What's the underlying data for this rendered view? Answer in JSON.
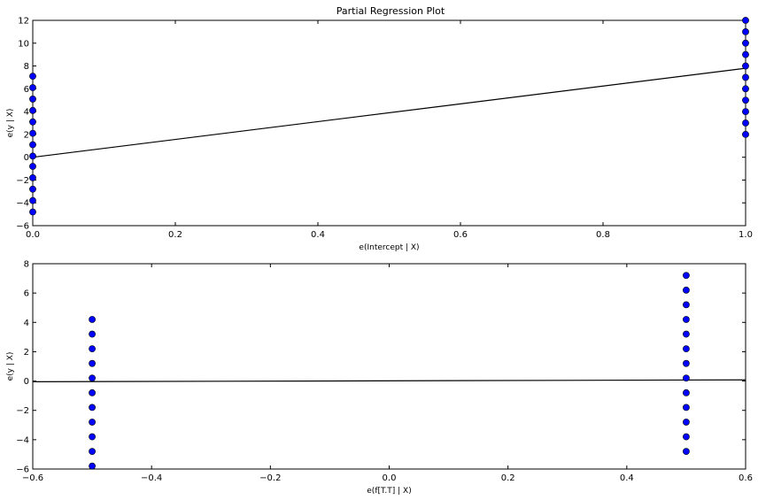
{
  "chart_data": [
    {
      "type": "scatter",
      "title": "Partial Regression Plot",
      "xlabel": "e(Intercept | X)",
      "ylabel": "e(y | X)",
      "xlim": [
        0.0,
        1.0
      ],
      "ylim": [
        -6,
        12
      ],
      "xticks": [
        "0.0",
        "0.2",
        "0.4",
        "0.6",
        "0.8",
        "1.0"
      ],
      "xtick_values": [
        0.0,
        0.2,
        0.4,
        0.6,
        0.8,
        1.0
      ],
      "yticks": [
        "−6",
        "−4",
        "−2",
        "0",
        "2",
        "4",
        "6",
        "8",
        "10",
        "12"
      ],
      "ytick_values": [
        -6,
        -4,
        -2,
        0,
        2,
        4,
        6,
        8,
        10,
        12
      ],
      "grid": false,
      "points": [
        {
          "x": 0.0,
          "y": -4.8
        },
        {
          "x": 0.0,
          "y": -3.8
        },
        {
          "x": 0.0,
          "y": -2.8
        },
        {
          "x": 0.0,
          "y": -1.8
        },
        {
          "x": 0.0,
          "y": -0.8
        },
        {
          "x": 0.0,
          "y": 0.1
        },
        {
          "x": 0.0,
          "y": 1.1
        },
        {
          "x": 0.0,
          "y": 2.1
        },
        {
          "x": 0.0,
          "y": 3.1
        },
        {
          "x": 0.0,
          "y": 4.1
        },
        {
          "x": 0.0,
          "y": 5.1
        },
        {
          "x": 0.0,
          "y": 6.1
        },
        {
          "x": 0.0,
          "y": 7.1
        },
        {
          "x": 1.0,
          "y": 2.0
        },
        {
          "x": 1.0,
          "y": 3.0
        },
        {
          "x": 1.0,
          "y": 4.0
        },
        {
          "x": 1.0,
          "y": 5.0
        },
        {
          "x": 1.0,
          "y": 6.0
        },
        {
          "x": 1.0,
          "y": 7.0
        },
        {
          "x": 1.0,
          "y": 8.0
        },
        {
          "x": 1.0,
          "y": 9.0
        },
        {
          "x": 1.0,
          "y": 10.0
        },
        {
          "x": 1.0,
          "y": 11.0
        },
        {
          "x": 1.0,
          "y": 12.0
        }
      ],
      "fit_line": {
        "x": [
          0.0,
          1.0
        ],
        "y": [
          0.0,
          7.8
        ]
      },
      "marker_color": "#0000ff",
      "line_color": "#000000"
    },
    {
      "type": "scatter",
      "title": "",
      "xlabel": "e(f[T.T] | X)",
      "ylabel": "e(y | X)",
      "xlim": [
        -0.6,
        0.6
      ],
      "ylim": [
        -6,
        8
      ],
      "xticks": [
        "−0.6",
        "−0.4",
        "−0.2",
        "0.0",
        "0.2",
        "0.4",
        "0.6"
      ],
      "xtick_values": [
        -0.6,
        -0.4,
        -0.2,
        0.0,
        0.2,
        0.4,
        0.6
      ],
      "yticks": [
        "−6",
        "−4",
        "−2",
        "0",
        "2",
        "4",
        "6",
        "8"
      ],
      "ytick_values": [
        -6,
        -4,
        -2,
        0,
        2,
        4,
        6,
        8
      ],
      "grid": false,
      "points": [
        {
          "x": -0.5,
          "y": -5.8
        },
        {
          "x": -0.5,
          "y": -4.8
        },
        {
          "x": -0.5,
          "y": -3.8
        },
        {
          "x": -0.5,
          "y": -2.8
        },
        {
          "x": -0.5,
          "y": -1.8
        },
        {
          "x": -0.5,
          "y": -0.8
        },
        {
          "x": -0.5,
          "y": 0.2
        },
        {
          "x": -0.5,
          "y": 1.2
        },
        {
          "x": -0.5,
          "y": 2.2
        },
        {
          "x": -0.5,
          "y": 3.2
        },
        {
          "x": -0.5,
          "y": 4.2
        },
        {
          "x": 0.5,
          "y": -4.8
        },
        {
          "x": 0.5,
          "y": -3.8
        },
        {
          "x": 0.5,
          "y": -2.8
        },
        {
          "x": 0.5,
          "y": -1.8
        },
        {
          "x": 0.5,
          "y": -0.8
        },
        {
          "x": 0.5,
          "y": 0.2
        },
        {
          "x": 0.5,
          "y": 1.2
        },
        {
          "x": 0.5,
          "y": 2.2
        },
        {
          "x": 0.5,
          "y": 3.2
        },
        {
          "x": 0.5,
          "y": 4.2
        },
        {
          "x": 0.5,
          "y": 5.2
        },
        {
          "x": 0.5,
          "y": 6.2
        },
        {
          "x": 0.5,
          "y": 7.2
        }
      ],
      "fit_line": {
        "x": [
          -0.6,
          0.6
        ],
        "y": [
          -0.05,
          0.08
        ]
      },
      "marker_color": "#0000ff",
      "line_color": "#000000"
    }
  ]
}
